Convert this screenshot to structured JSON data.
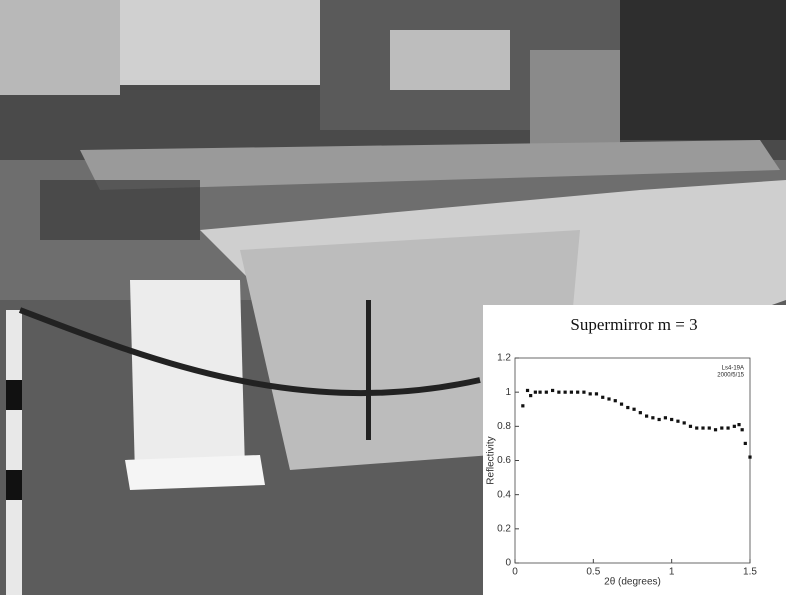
{
  "chart_data": {
    "type": "scatter",
    "title": "Supermirror m = 3",
    "annotations": [
      "Ls4-19A",
      "2000/5/15"
    ],
    "x_label": "2θ (degrees)",
    "y_label": "Reflectivity",
    "x": [
      0.05,
      0.08,
      0.1,
      0.13,
      0.16,
      0.2,
      0.24,
      0.28,
      0.32,
      0.36,
      0.4,
      0.44,
      0.48,
      0.52,
      0.56,
      0.6,
      0.64,
      0.68,
      0.72,
      0.76,
      0.8,
      0.84,
      0.88,
      0.92,
      0.96,
      1.0,
      1.04,
      1.08,
      1.12,
      1.16,
      1.2,
      1.24,
      1.28,
      1.32,
      1.36,
      1.4,
      1.43,
      1.45,
      1.47,
      1.5
    ],
    "values": [
      0.92,
      1.01,
      0.98,
      1.0,
      1.0,
      1.0,
      1.01,
      1.0,
      1.0,
      1.0,
      1.0,
      1.0,
      0.99,
      0.99,
      0.97,
      0.96,
      0.95,
      0.93,
      0.91,
      0.9,
      0.88,
      0.86,
      0.85,
      0.84,
      0.85,
      0.84,
      0.83,
      0.82,
      0.8,
      0.79,
      0.79,
      0.79,
      0.78,
      0.79,
      0.79,
      0.8,
      0.81,
      0.78,
      0.7,
      0.62
    ],
    "color": "#111111",
    "xlim": [
      0,
      1.5
    ],
    "xticks": [
      0,
      0.5,
      1,
      1.5
    ],
    "ylim": [
      0,
      1.2
    ],
    "yticks": [
      0,
      0.2,
      0.4,
      0.6,
      0.8,
      1,
      1.2
    ]
  }
}
